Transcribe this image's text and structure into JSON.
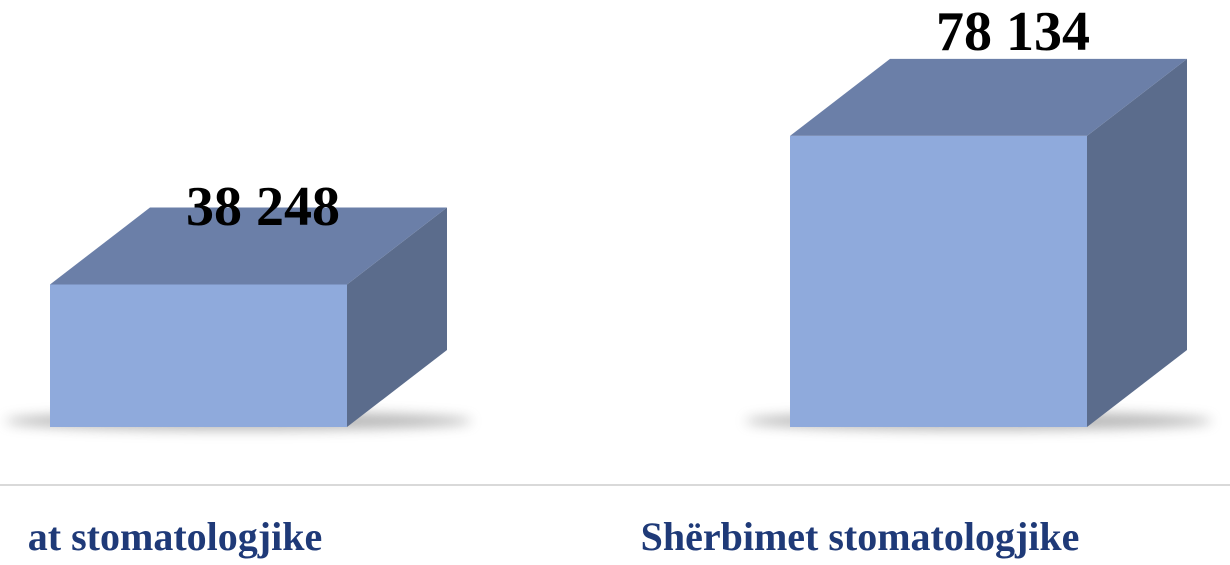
{
  "chart_data": {
    "type": "bar",
    "categories": [
      "at stomatologjike",
      "Shërbimet stomatologjike"
    ],
    "values": [
      38248,
      78134
    ],
    "value_labels": [
      "38 248",
      "78 134"
    ],
    "style": "3d-box",
    "grid": false,
    "legend": "none"
  },
  "colors": {
    "front": "#8faadc",
    "top": "#6b7fa8",
    "side": "#5b6c8c",
    "category_label": "#1f3a78",
    "baseline": "#d9d9d9"
  }
}
